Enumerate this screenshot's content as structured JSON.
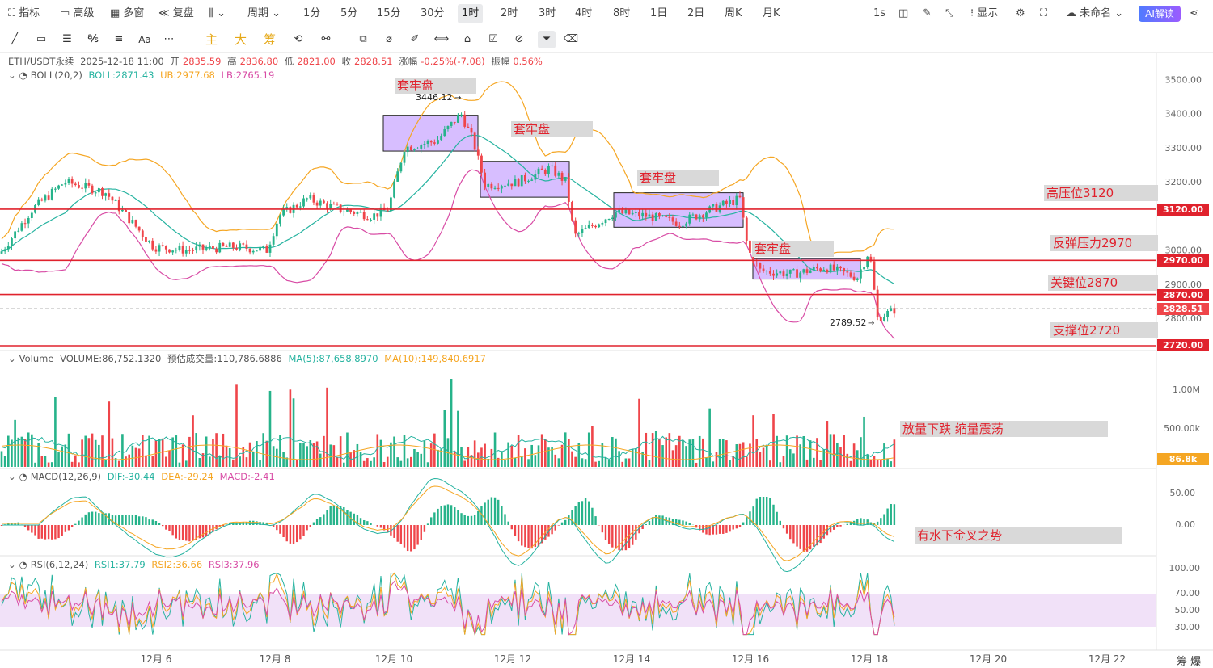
{
  "topbar": {
    "indicators": "指标",
    "advanced": "高级",
    "multi": "多窗",
    "replay": "复盘",
    "period": "周期",
    "periods": [
      "1分",
      "5分",
      "15分",
      "30分",
      "1时",
      "2时",
      "3时",
      "4时",
      "8时",
      "1日",
      "2日",
      "周K",
      "月K"
    ],
    "selected_period": "1时",
    "sec": "1s",
    "display": "显示",
    "unnamed": "未命名",
    "ai": "AI解读"
  },
  "toolbar": {
    "main": "主",
    "big": "大",
    "chip": "筹",
    "aa": "Aa"
  },
  "legend": {
    "pair": "ETH/USDT永续",
    "time": "2025-12-18 11:00",
    "open_label": "开",
    "open": "2835.59",
    "high_label": "高",
    "high": "2836.80",
    "low_label": "低",
    "low": "2821.00",
    "close_label": "收",
    "close": "2828.51",
    "change_label": "涨幅",
    "change": "-0.25%(-7.08)",
    "amp_label": "振幅",
    "amp": "0.56%"
  },
  "boll": {
    "name": "BOLL(20,2)",
    "mid": "BOLL:2871.43",
    "ub": "UB:2977.68",
    "lb": "LB:2765.19"
  },
  "volume": {
    "name": "Volume",
    "vol": "VOLUME:86,752.1320",
    "est": "预估成交量:110,786.6886",
    "ma5": "MA(5):87,658.8970",
    "ma10": "MA(10):149,840.6917",
    "axis": [
      "1.00M",
      "500.00k"
    ],
    "current": "86.8k"
  },
  "macd": {
    "name": "MACD(12,26,9)",
    "dif": "DIF:-30.44",
    "dea": "DEA:-29.24",
    "macd": "MACD:-2.41",
    "axis": [
      "50.00",
      "0.00"
    ]
  },
  "rsi": {
    "name": "RSI(6,12,24)",
    "r1": "RSI1:37.79",
    "r2": "RSI2:36.66",
    "r3": "RSI3:37.96",
    "axis": [
      "100.00",
      "70.00",
      "50.00",
      "30.00"
    ]
  },
  "price_axis": [
    "3500.00",
    "3400.00",
    "3300.00",
    "3200.00",
    "3000.00",
    "2900.00",
    "2800.00"
  ],
  "price_tags": {
    "p3120": "3120.00",
    "p2970": "2970.00",
    "p2870": "2870.00",
    "last": "2828.51",
    "p2720": "2720.00"
  },
  "annotations": {
    "box": "套牢盘",
    "high_label": "3446.12",
    "low_label": "2789.52",
    "resist": "高压位3120",
    "rebound": "反弹压力2970",
    "key": "关键位2870",
    "support": "支撑位2720",
    "vol_note": "放量下跌 缩量震荡",
    "macd_note": "有水下金叉之势"
  },
  "dates": [
    "12月 6",
    "12月 8",
    "12月 10",
    "12月 12",
    "12月 14",
    "12月 16",
    "12月 18",
    "12月 20",
    "12月 22"
  ],
  "corner": "筹 爆",
  "colors": {
    "up": "#26b38a",
    "down": "#ef454a",
    "ub": "#f5a623",
    "mid": "#26b3a0",
    "lb": "#d84ca5",
    "level": "#e0222d",
    "box": "rgba(175,125,255,0.5)"
  }
}
